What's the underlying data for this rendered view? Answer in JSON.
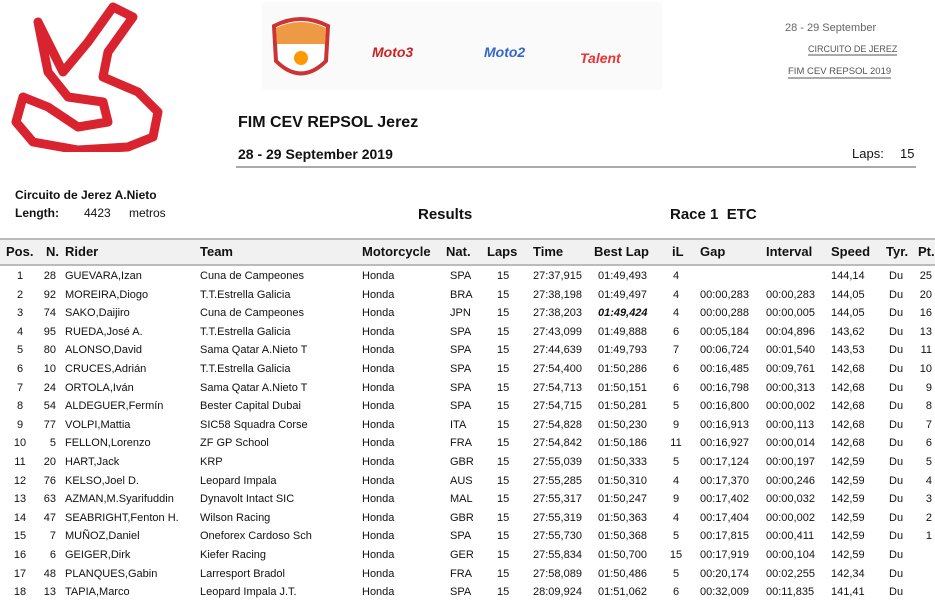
{
  "header": {
    "title": "FIM CEV REPSOL Jerez",
    "dates": "28 - 29 September 2019",
    "laps_label": "Laps:",
    "laps": "15",
    "banner": {
      "date": "28 - 29 September",
      "circuit": "CIRCUITO DE JEREZ",
      "series": "FIM CEV REPSOL 2019",
      "logos": [
        "CEV",
        "REPSOL",
        "Moto3",
        "Moto2",
        "Talent"
      ]
    }
  },
  "circuit": {
    "name": "Circuito de Jerez A.Nieto",
    "length_label": "Length:",
    "length": "4423",
    "unit": "metros"
  },
  "section": "Results",
  "race": "Race 1  ETC",
  "columns": [
    "Pos.",
    "N.",
    "Rider",
    "Team",
    "Motorcycle",
    "Nat.",
    "Laps",
    "Time",
    "Best Lap",
    "iL",
    "Gap",
    "Interval",
    "Speed",
    "Tyr.",
    "Pt."
  ],
  "rows": [
    [
      "1",
      "28",
      "GUEVARA,Izan",
      "Cuna de Campeones",
      "Honda",
      "SPA",
      "15",
      "27:37,915",
      "01:49,493",
      "4",
      "",
      "",
      "144,14",
      "Du",
      "25"
    ],
    [
      "2",
      "92",
      "MOREIRA,Diogo",
      "T.T.Estrella Galicia",
      "Honda",
      "BRA",
      "15",
      "27:38,198",
      "01:49,497",
      "4",
      "00:00,283",
      "00:00,283",
      "144,05",
      "Du",
      "20"
    ],
    [
      "3",
      "74",
      "SAKO,Daijiro",
      "Cuna de Campeones",
      "Honda",
      "JPN",
      "15",
      "27:38,203",
      "01:49,424",
      "4",
      "00:00,288",
      "00:00,005",
      "144,05",
      "Du",
      "16"
    ],
    [
      "4",
      "95",
      "RUEDA,José A.",
      "T.T.Estrella Galicia",
      "Honda",
      "SPA",
      "15",
      "27:43,099",
      "01:49,888",
      "6",
      "00:05,184",
      "00:04,896",
      "143,62",
      "Du",
      "13"
    ],
    [
      "5",
      "80",
      "ALONSO,David",
      "Sama Qatar A.Nieto T",
      "Honda",
      "SPA",
      "15",
      "27:44,639",
      "01:49,793",
      "7",
      "00:06,724",
      "00:01,540",
      "143,53",
      "Du",
      "11"
    ],
    [
      "6",
      "10",
      "CRUCES,Adrián",
      "T.T.Estrella Galicia",
      "Honda",
      "SPA",
      "15",
      "27:54,400",
      "01:50,286",
      "6",
      "00:16,485",
      "00:09,761",
      "142,68",
      "Du",
      "10"
    ],
    [
      "7",
      "24",
      "ORTOLA,Iván",
      "Sama Qatar A.Nieto T",
      "Honda",
      "SPA",
      "15",
      "27:54,713",
      "01:50,151",
      "6",
      "00:16,798",
      "00:00,313",
      "142,68",
      "Du",
      "9"
    ],
    [
      "8",
      "54",
      "ALDEGUER,Fermín",
      "Bester Capital Dubai",
      "Honda",
      "SPA",
      "15",
      "27:54,715",
      "01:50,281",
      "5",
      "00:16,800",
      "00:00,002",
      "142,68",
      "Du",
      "8"
    ],
    [
      "9",
      "77",
      "VOLPI,Mattia",
      "SIC58 Squadra Corse",
      "Honda",
      "ITA",
      "15",
      "27:54,828",
      "01:50,230",
      "9",
      "00:16,913",
      "00:00,113",
      "142,68",
      "Du",
      "7"
    ],
    [
      "10",
      "5",
      "FELLON,Lorenzo",
      "ZF GP School",
      "Honda",
      "FRA",
      "15",
      "27:54,842",
      "01:50,186",
      "11",
      "00:16,927",
      "00:00,014",
      "142,68",
      "Du",
      "6"
    ],
    [
      "11",
      "20",
      "HART,Jack",
      "KRP",
      "Honda",
      "GBR",
      "15",
      "27:55,039",
      "01:50,333",
      "5",
      "00:17,124",
      "00:00,197",
      "142,59",
      "Du",
      "5"
    ],
    [
      "12",
      "76",
      "KELSO,Joel D.",
      "Leopard Impala",
      "Honda",
      "AUS",
      "15",
      "27:55,285",
      "01:50,310",
      "4",
      "00:17,370",
      "00:00,246",
      "142,59",
      "Du",
      "4"
    ],
    [
      "13",
      "63",
      "AZMAN,M.Syarifuddin",
      "Dynavolt Intact SIC",
      "Honda",
      "MAL",
      "15",
      "27:55,317",
      "01:50,247",
      "9",
      "00:17,402",
      "00:00,032",
      "142,59",
      "Du",
      "3"
    ],
    [
      "14",
      "47",
      "SEABRIGHT,Fenton H.",
      "Wilson Racing",
      "Honda",
      "GBR",
      "15",
      "27:55,319",
      "01:50,363",
      "4",
      "00:17,404",
      "00:00,002",
      "142,59",
      "Du",
      "2"
    ],
    [
      "15",
      "7",
      "MUÑOZ,Daniel",
      "Oneforex Cardoso Sch",
      "Honda",
      "SPA",
      "15",
      "27:55,730",
      "01:50,368",
      "5",
      "00:17,815",
      "00:00,411",
      "142,59",
      "Du",
      "1"
    ],
    [
      "16",
      "6",
      "GEIGER,Dirk",
      "Kiefer Racing",
      "Honda",
      "GER",
      "15",
      "27:55,834",
      "01:50,700",
      "15",
      "00:17,919",
      "00:00,104",
      "142,59",
      "Du",
      ""
    ],
    [
      "17",
      "48",
      "PLANQUES,Gabin",
      "Larresport Bradol",
      "Honda",
      "FRA",
      "15",
      "27:58,089",
      "01:50,486",
      "5",
      "00:20,174",
      "00:02,255",
      "142,34",
      "Du",
      ""
    ],
    [
      "18",
      "13",
      "TAPIA,Marco",
      "Leopard Impala J.T.",
      "Honda",
      "SPA",
      "15",
      "28:09,924",
      "01:51,062",
      "6",
      "00:32,009",
      "00:11,835",
      "141,41",
      "Du",
      ""
    ]
  ],
  "best_lap_row": 2,
  "colors": {
    "track": "#d9232e",
    "header_bg": "#f1f1f1"
  }
}
